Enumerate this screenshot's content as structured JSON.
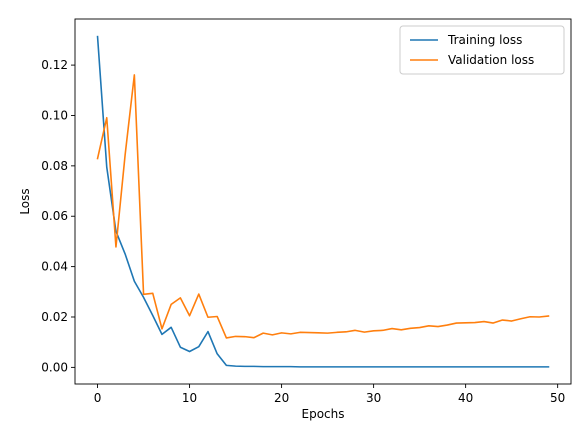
{
  "chart_data": {
    "type": "line",
    "title": "",
    "xlabel": "Epochs",
    "ylabel": "Loss",
    "xlim": [
      -2.45,
      51.45
    ],
    "ylim": [
      -0.0066,
      0.1383
    ],
    "xticks": [
      0,
      10,
      20,
      30,
      40,
      50
    ],
    "yticks": [
      0.0,
      0.02,
      0.04,
      0.06,
      0.08,
      0.1,
      0.12
    ],
    "ytick_labels": [
      "0.00",
      "0.02",
      "0.04",
      "0.06",
      "0.08",
      "0.10",
      "0.12"
    ],
    "grid": false,
    "legend_position": "top-right",
    "series": [
      {
        "name": "Training loss",
        "color": "#1f77b4",
        "x": [
          0,
          1,
          2,
          3,
          4,
          5,
          6,
          7,
          8,
          9,
          10,
          11,
          12,
          13,
          14,
          15,
          16,
          17,
          18,
          19,
          20,
          21,
          22,
          23,
          24,
          25,
          26,
          27,
          28,
          29,
          30,
          31,
          32,
          33,
          34,
          35,
          36,
          37,
          38,
          39,
          40,
          41,
          42,
          43,
          44,
          45,
          46,
          47,
          48,
          49
        ],
        "y": [
          0.1313,
          0.0795,
          0.054,
          0.045,
          0.0342,
          0.0278,
          0.0206,
          0.0131,
          0.0159,
          0.008,
          0.0063,
          0.0082,
          0.0142,
          0.0054,
          0.0008,
          0.0005,
          0.0004,
          0.0004,
          0.0003,
          0.0003,
          0.0003,
          0.0003,
          0.0002,
          0.0002,
          0.0002,
          0.0002,
          0.0002,
          0.0002,
          0.0002,
          0.0002,
          0.0002,
          0.0002,
          0.0002,
          0.0002,
          0.0002,
          0.0002,
          0.0002,
          0.0002,
          0.0002,
          0.0002,
          0.0002,
          0.0002,
          0.0002,
          0.0002,
          0.0002,
          0.0002,
          0.0002,
          0.0002,
          0.0002,
          0.0002
        ]
      },
      {
        "name": "Validation loss",
        "color": "#ff7f0e",
        "x": [
          0,
          1,
          2,
          3,
          4,
          5,
          6,
          7,
          8,
          9,
          10,
          11,
          12,
          13,
          14,
          15,
          16,
          17,
          18,
          19,
          20,
          21,
          22,
          23,
          24,
          25,
          26,
          27,
          28,
          29,
          30,
          31,
          32,
          33,
          34,
          35,
          36,
          37,
          38,
          39,
          40,
          41,
          42,
          43,
          44,
          45,
          46,
          47,
          48,
          49
        ],
        "y": [
          0.0829,
          0.0991,
          0.0478,
          0.0845,
          0.1161,
          0.029,
          0.0294,
          0.0153,
          0.025,
          0.0276,
          0.0205,
          0.0291,
          0.0199,
          0.0202,
          0.0117,
          0.0123,
          0.0122,
          0.0118,
          0.0136,
          0.0129,
          0.0137,
          0.0133,
          0.0139,
          0.0138,
          0.0137,
          0.0136,
          0.0139,
          0.0141,
          0.0147,
          0.014,
          0.0145,
          0.0147,
          0.0154,
          0.0149,
          0.0155,
          0.0158,
          0.0165,
          0.0162,
          0.0168,
          0.0176,
          0.0177,
          0.0178,
          0.0182,
          0.0176,
          0.0188,
          0.0184,
          0.0193,
          0.0201,
          0.02,
          0.0204
        ]
      }
    ]
  }
}
